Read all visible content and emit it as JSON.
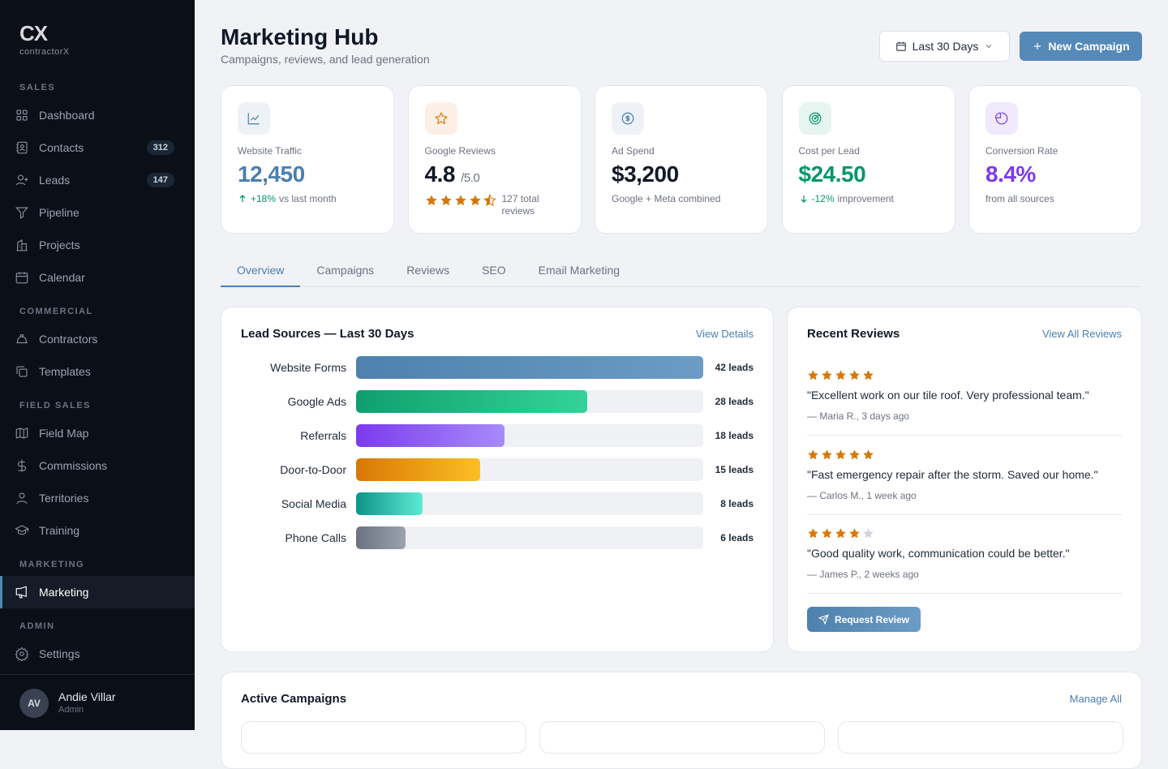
{
  "brand": {
    "mark": "CX",
    "name": "contractorX"
  },
  "sidebar": {
    "sections": {
      "sales": "SALES",
      "commercial": "COMMERCIAL",
      "field_sales": "FIELD SALES",
      "marketing": "MARKETING",
      "admin": "ADMIN"
    },
    "items": [
      {
        "label": "Dashboard",
        "icon": "grid-icon"
      },
      {
        "label": "Contacts",
        "icon": "contact-book-icon",
        "badge": "312"
      },
      {
        "label": "Leads",
        "icon": "user-plus-icon",
        "badge": "147"
      },
      {
        "label": "Pipeline",
        "icon": "funnel-icon"
      },
      {
        "label": "Projects",
        "icon": "building-icon"
      },
      {
        "label": "Calendar",
        "icon": "calendar-icon"
      },
      {
        "label": "Contractors",
        "icon": "hard-hat-icon"
      },
      {
        "label": "Templates",
        "icon": "copy-icon"
      },
      {
        "label": "Field Map",
        "icon": "map-icon"
      },
      {
        "label": "Commissions",
        "icon": "dollar-icon"
      },
      {
        "label": "Territories",
        "icon": "map-pin-icon"
      },
      {
        "label": "Training",
        "icon": "graduation-cap-icon"
      },
      {
        "label": "Marketing",
        "icon": "megaphone-icon",
        "active": true
      },
      {
        "label": "Settings",
        "icon": "gear-icon"
      }
    ],
    "user": {
      "initials": "AV",
      "name": "Andie Villar",
      "role": "Admin"
    }
  },
  "header": {
    "title": "Marketing Hub",
    "subtitle": "Campaigns, reviews, and lead generation",
    "date_range": "Last 30 Days",
    "new_campaign": "New Campaign"
  },
  "kpis": [
    {
      "label": "Website Traffic",
      "value": "12,450",
      "change": "+18%",
      "note": "vs last month",
      "color": "#4a7fb0",
      "icon": "line-chart-icon"
    },
    {
      "label": "Google Reviews",
      "value": "4.8",
      "suffix": "/5.0",
      "rating": 4.5,
      "note": "127 total reviews",
      "color": "#111827",
      "icon": "star-icon"
    },
    {
      "label": "Ad Spend",
      "value": "$3,200",
      "note": "Google + Meta combined",
      "color": "#111827",
      "icon": "dollar-circle-icon"
    },
    {
      "label": "Cost per Lead",
      "value": "$24.50",
      "change": "-12%",
      "note": "improvement",
      "color": "#059669",
      "icon": "target-icon"
    },
    {
      "label": "Conversion Rate",
      "value": "8.4%",
      "note": "from all sources",
      "color": "#7c3aed",
      "icon": "pie-chart-icon"
    }
  ],
  "tabs": [
    "Overview",
    "Campaigns",
    "Reviews",
    "SEO",
    "Email Marketing"
  ],
  "lead_sources": {
    "title": "Lead Sources — Last 30 Days",
    "link": "View Details",
    "rows": [
      {
        "name": "Website Forms",
        "count": 42,
        "label": "42 leads",
        "colors": [
          "#4f81ae",
          "#6a9cc6"
        ]
      },
      {
        "name": "Google Ads",
        "count": 28,
        "label": "28 leads",
        "colors": [
          "#0f9f6e",
          "#34d399"
        ]
      },
      {
        "name": "Referrals",
        "count": 18,
        "label": "18 leads",
        "colors": [
          "#7c3aed",
          "#a78bfa"
        ]
      },
      {
        "name": "Door-to-Door",
        "count": 15,
        "label": "15 leads",
        "colors": [
          "#d97706",
          "#fbbf24"
        ]
      },
      {
        "name": "Social Media",
        "count": 8,
        "label": "8 leads",
        "colors": [
          "#0d9488",
          "#5eead4"
        ]
      },
      {
        "name": "Phone Calls",
        "count": 6,
        "label": "6 leads",
        "colors": [
          "#6b7280",
          "#9ca3af"
        ]
      }
    ]
  },
  "reviews": {
    "title": "Recent Reviews",
    "link": "View All Reviews",
    "items": [
      {
        "stars": 5,
        "text": "\"Excellent work on our tile roof. Very professional team.\"",
        "author": "— Maria R., 3 days ago"
      },
      {
        "stars": 5,
        "text": "\"Fast emergency repair after the storm. Saved our home.\"",
        "author": "— Carlos M., 1 week ago"
      },
      {
        "stars": 4,
        "text": "\"Good quality work, communication could be better.\"",
        "author": "— James P., 2 weeks ago"
      }
    ],
    "button": "Request Review"
  },
  "campaigns": {
    "title": "Active Campaigns",
    "link": "Manage All"
  }
}
